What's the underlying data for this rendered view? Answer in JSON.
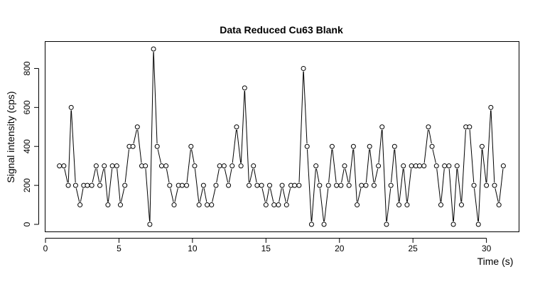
{
  "chart_data": {
    "type": "line",
    "title": "Data Reduced Cu63 Blank",
    "xlabel": "Time (s)",
    "ylabel": "Signal intensity (cps)",
    "xlim": [
      0,
      32
    ],
    "ylim": [
      0,
      900
    ],
    "x_ticks": [
      0,
      5,
      10,
      15,
      20,
      25,
      30
    ],
    "y_ticks": [
      0,
      200,
      400,
      600,
      800
    ],
    "grid": false,
    "series": [
      {
        "markers": "open-circle",
        "x": [
          0.95,
          1.25,
          1.55,
          1.75,
          2.05,
          2.35,
          2.6,
          2.85,
          3.15,
          3.45,
          3.7,
          4.0,
          4.25,
          4.55,
          4.85,
          5.1,
          5.4,
          5.7,
          5.95,
          6.25,
          6.55,
          6.8,
          7.1,
          7.35,
          7.6,
          7.9,
          8.2,
          8.45,
          8.75,
          9.05,
          9.3,
          9.6,
          9.9,
          10.15,
          10.45,
          10.75,
          11.0,
          11.3,
          11.6,
          11.85,
          12.15,
          12.45,
          12.7,
          13.0,
          13.3,
          13.55,
          13.85,
          14.15,
          14.4,
          14.7,
          15.0,
          15.25,
          15.55,
          15.85,
          16.1,
          16.4,
          16.7,
          16.95,
          17.25,
          17.55,
          17.8,
          18.1,
          18.4,
          18.65,
          18.95,
          19.25,
          19.5,
          19.8,
          20.1,
          20.35,
          20.65,
          20.95,
          21.2,
          21.5,
          21.8,
          22.05,
          22.35,
          22.65,
          22.9,
          23.2,
          23.5,
          23.75,
          24.05,
          24.35,
          24.6,
          24.9,
          25.2,
          25.45,
          25.75,
          26.05,
          26.3,
          26.6,
          26.9,
          27.15,
          27.45,
          27.75,
          28.0,
          28.3,
          28.6,
          28.85,
          29.15,
          29.45,
          29.7,
          30.0,
          30.3,
          30.55,
          30.85,
          31.15
        ],
        "y": [
          300,
          300,
          200,
          600,
          200,
          100,
          200,
          200,
          200,
          300,
          200,
          300,
          100,
          300,
          300,
          100,
          200,
          400,
          400,
          500,
          300,
          300,
          0,
          900,
          400,
          300,
          300,
          200,
          100,
          200,
          200,
          200,
          400,
          300,
          100,
          200,
          100,
          100,
          200,
          300,
          300,
          200,
          300,
          500,
          300,
          700,
          200,
          300,
          200,
          200,
          100,
          200,
          100,
          100,
          200,
          100,
          200,
          200,
          200,
          800,
          400,
          0,
          300,
          200,
          0,
          200,
          400,
          200,
          200,
          300,
          200,
          400,
          100,
          200,
          200,
          400,
          200,
          300,
          500,
          0,
          200,
          400,
          100,
          300,
          100,
          300,
          300,
          300,
          300,
          500,
          400,
          300,
          100,
          300,
          300,
          0,
          300,
          100,
          500,
          500,
          200,
          0,
          400,
          200,
          600,
          200,
          100,
          300
        ]
      }
    ]
  }
}
